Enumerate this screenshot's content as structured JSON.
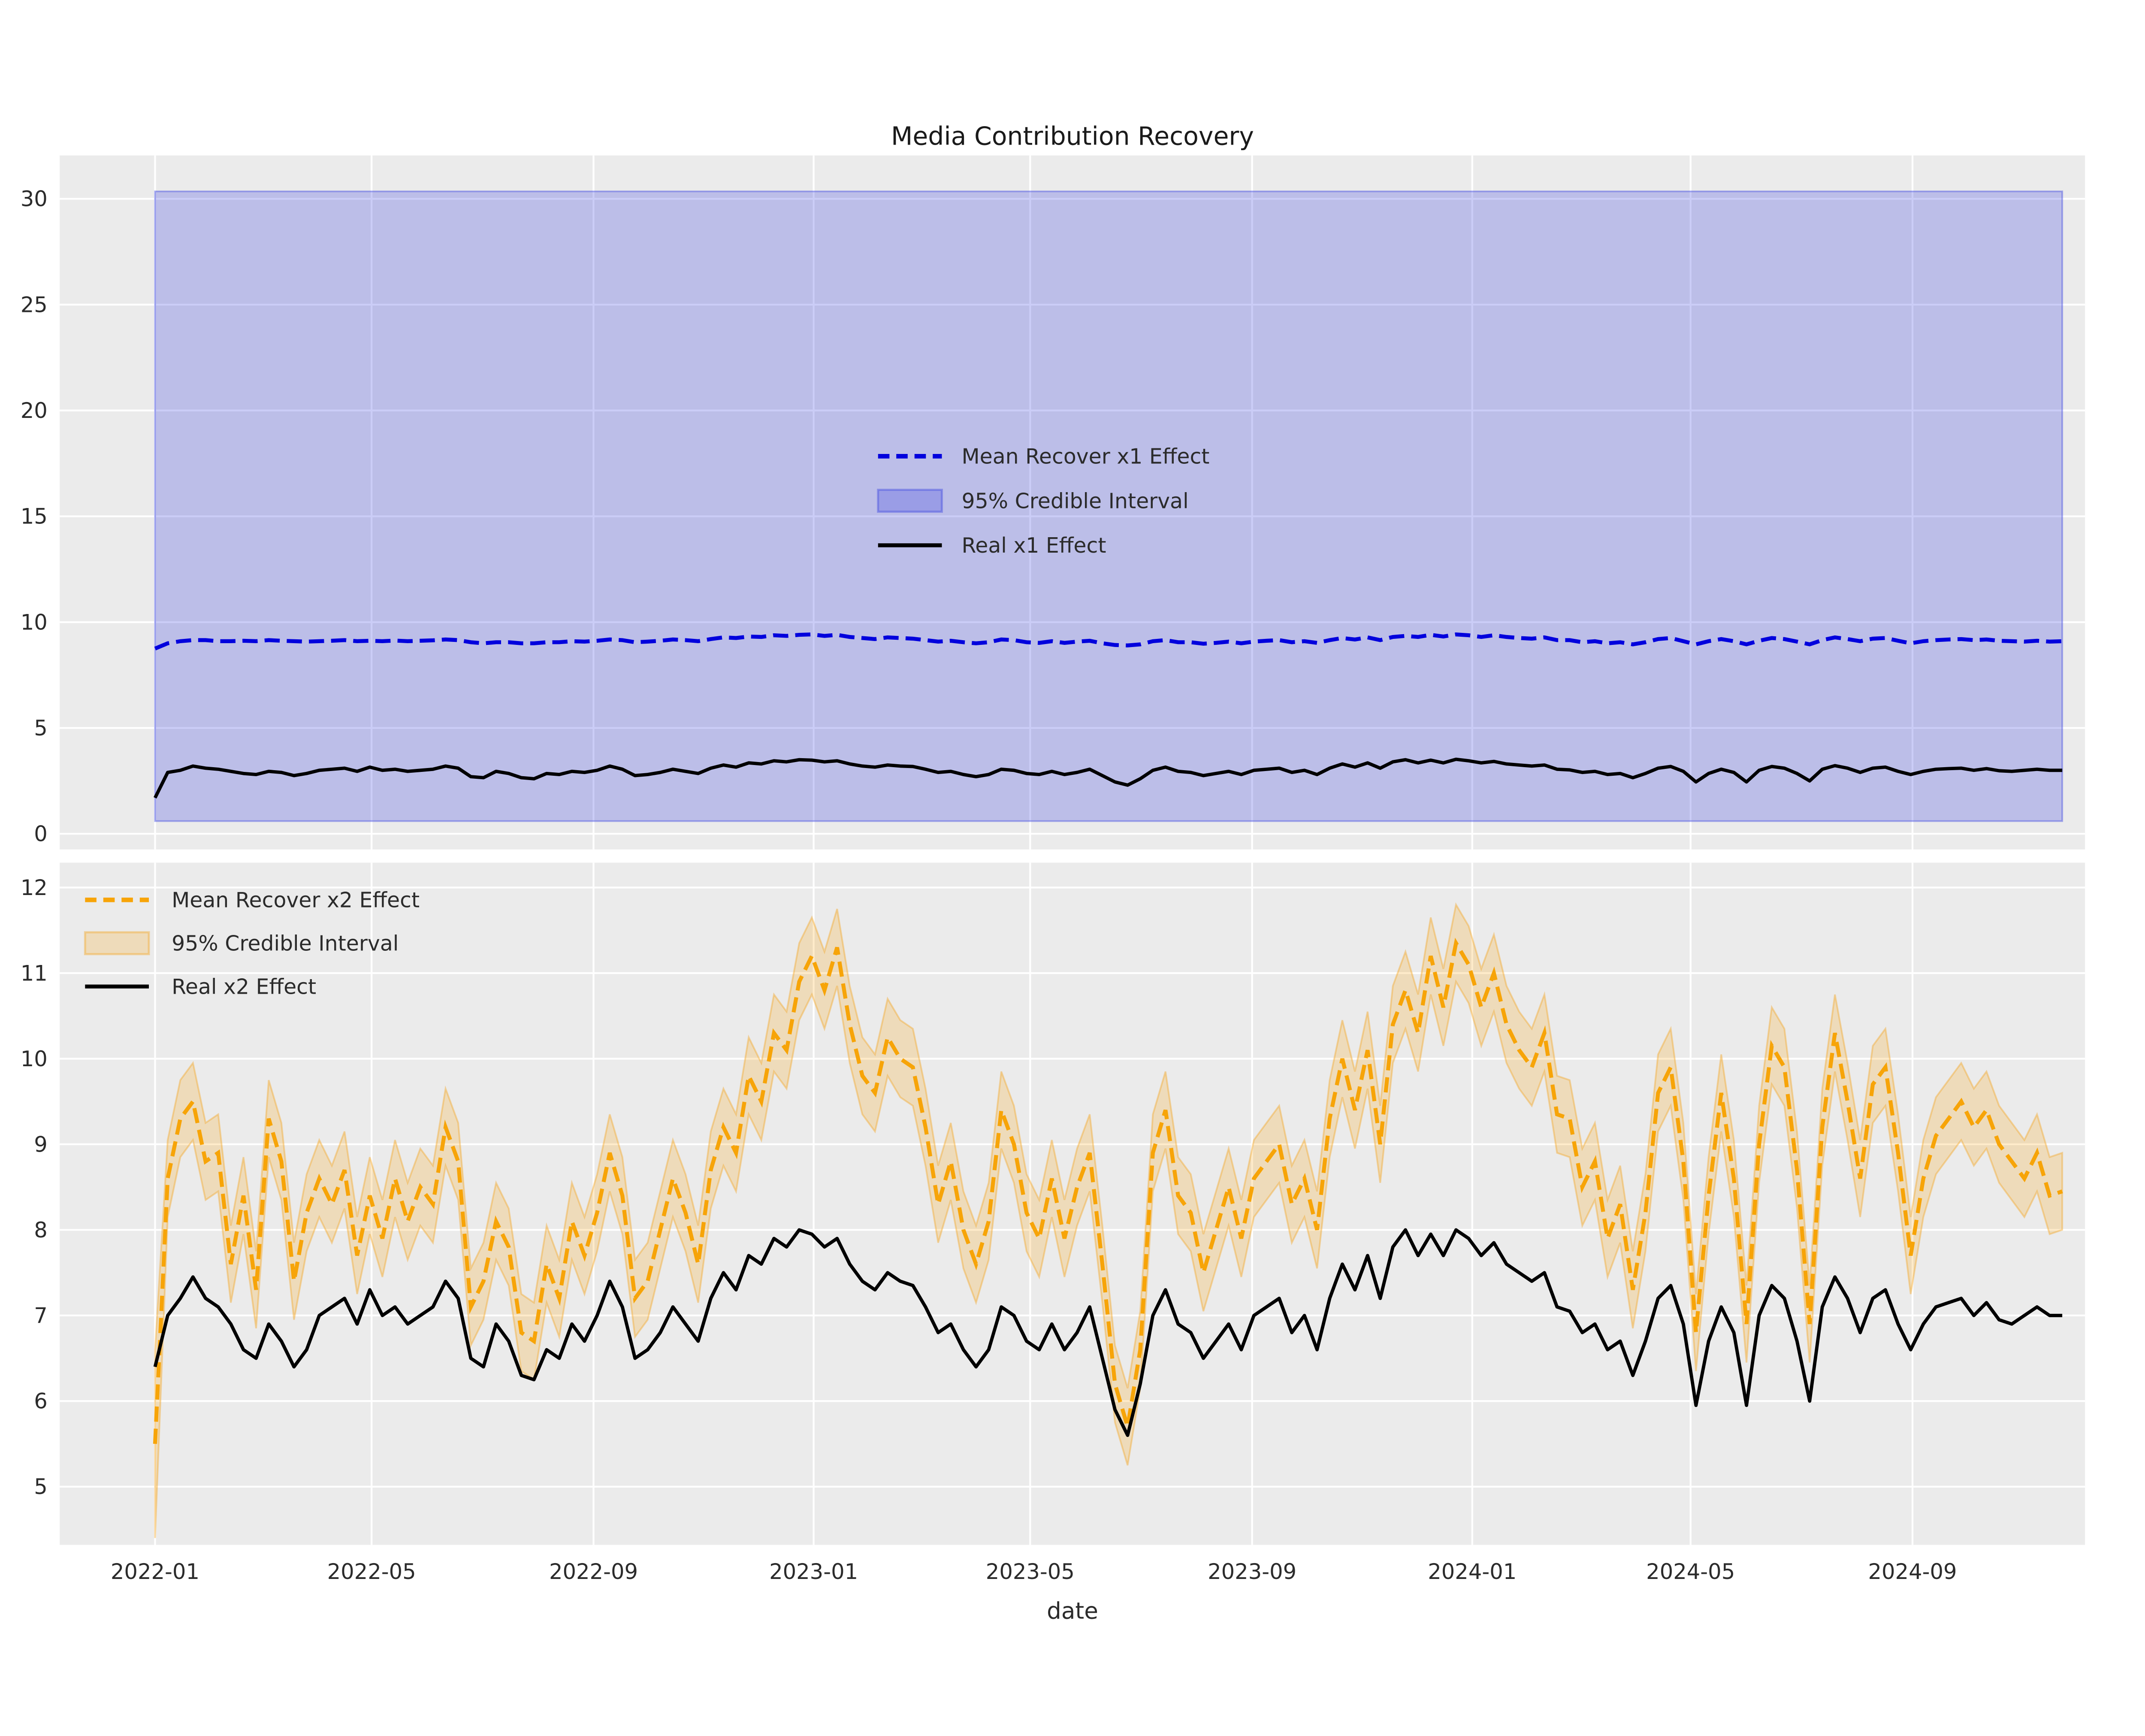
{
  "title": "Media Contribution Recovery",
  "colors": {
    "figure_bg": "#ffffff",
    "axes_bg": "#ebebeb",
    "grid": "#ffffff",
    "tick_text": "#2b2b2b",
    "x1_mean": "#0101dd",
    "x1_band_fill": "rgba(62,72,225,0.27)",
    "x1_band_edge": "rgba(62,72,225,0.42)",
    "x2_mean": "#f7a408",
    "x2_band_fill": "rgba(250,166,15,0.22)",
    "x2_band_edge": "rgba(244,160,20,0.38)",
    "real_line": "#000000"
  },
  "x_axis": {
    "label": "date",
    "start_date": "2022-01-01",
    "cadence_days": 7,
    "tick_labels": [
      "2022-01",
      "2022-05",
      "2022-09",
      "2023-01",
      "2023-05",
      "2023-09",
      "2024-01",
      "2024-05",
      "2024-09"
    ]
  },
  "chart_data": [
    {
      "type": "line",
      "name": "x1-subplot",
      "ylim": [
        -0.74,
        32.05
      ],
      "yticks": [
        0,
        5,
        10,
        15,
        20,
        25,
        30
      ],
      "legend_entries": [
        "Mean Recover x1 Effect",
        "95% Credible Interval",
        "Real x1 Effect"
      ],
      "series": [
        {
          "name": "Mean Recover x1 Effect",
          "role": "mean",
          "line": "dashed",
          "values": [
            8.75,
            9.0,
            9.1,
            9.15,
            9.15,
            9.1,
            9.1,
            9.12,
            9.1,
            9.15,
            9.12,
            9.1,
            9.08,
            9.1,
            9.12,
            9.15,
            9.1,
            9.12,
            9.1,
            9.13,
            9.1,
            9.12,
            9.14,
            9.18,
            9.15,
            9.05,
            9.0,
            9.05,
            9.05,
            9.0,
            9.0,
            9.05,
            9.05,
            9.1,
            9.08,
            9.12,
            9.18,
            9.15,
            9.05,
            9.08,
            9.12,
            9.18,
            9.15,
            9.1,
            9.2,
            9.28,
            9.25,
            9.32,
            9.3,
            9.38,
            9.35,
            9.4,
            9.42,
            9.35,
            9.4,
            9.3,
            9.25,
            9.2,
            9.28,
            9.25,
            9.22,
            9.15,
            9.08,
            9.12,
            9.05,
            9.0,
            9.05,
            9.18,
            9.15,
            9.05,
            9.02,
            9.1,
            9.02,
            9.08,
            9.12,
            9.0,
            8.92,
            8.9,
            8.95,
            9.1,
            9.15,
            9.05,
            9.05,
            8.98,
            9.02,
            9.08,
            9.0,
            9.08,
            9.12,
            9.15,
            9.05,
            9.1,
            9.02,
            9.15,
            9.25,
            9.18,
            9.28,
            9.15,
            9.3,
            9.35,
            9.3,
            9.4,
            9.32,
            9.42,
            9.38,
            9.3,
            9.38,
            9.3,
            9.25,
            9.22,
            9.28,
            9.15,
            9.15,
            9.05,
            9.1,
            9.0,
            9.05,
            8.95,
            9.05,
            9.2,
            9.25,
            9.1,
            8.95,
            9.1,
            9.2,
            9.1,
            8.95,
            9.12,
            9.25,
            9.2,
            9.08,
            8.95,
            9.15,
            9.28,
            9.2,
            9.1,
            9.22,
            9.25,
            9.12,
            9.0,
            9.1,
            9.15,
            9.18,
            9.2,
            9.15,
            9.18,
            9.12,
            9.1,
            9.08,
            9.12,
            9.08,
            9.1
          ]
        },
        {
          "name": "95% Credible Interval",
          "role": "band",
          "upper_constant": 30.35,
          "lower_constant": 0.6
        },
        {
          "name": "Real x1 Effect",
          "role": "real",
          "line": "solid",
          "values": [
            1.7,
            2.9,
            3.0,
            3.2,
            3.1,
            3.05,
            2.95,
            2.85,
            2.8,
            2.95,
            2.9,
            2.75,
            2.85,
            3.0,
            3.05,
            3.1,
            2.95,
            3.15,
            3.0,
            3.05,
            2.95,
            3.0,
            3.05,
            3.2,
            3.1,
            2.7,
            2.65,
            2.95,
            2.85,
            2.65,
            2.6,
            2.85,
            2.8,
            2.95,
            2.9,
            3.0,
            3.2,
            3.05,
            2.75,
            2.8,
            2.9,
            3.05,
            2.95,
            2.85,
            3.1,
            3.25,
            3.15,
            3.35,
            3.3,
            3.45,
            3.4,
            3.5,
            3.48,
            3.4,
            3.45,
            3.3,
            3.2,
            3.15,
            3.25,
            3.2,
            3.18,
            3.05,
            2.9,
            2.95,
            2.8,
            2.7,
            2.8,
            3.05,
            3.0,
            2.85,
            2.8,
            2.95,
            2.8,
            2.9,
            3.05,
            2.75,
            2.45,
            2.3,
            2.6,
            3.0,
            3.15,
            2.95,
            2.9,
            2.75,
            2.85,
            2.95,
            2.8,
            3.0,
            3.05,
            3.1,
            2.9,
            3.0,
            2.8,
            3.1,
            3.3,
            3.15,
            3.35,
            3.1,
            3.4,
            3.5,
            3.35,
            3.48,
            3.35,
            3.52,
            3.45,
            3.35,
            3.42,
            3.3,
            3.25,
            3.2,
            3.25,
            3.05,
            3.02,
            2.9,
            2.95,
            2.8,
            2.85,
            2.65,
            2.85,
            3.1,
            3.18,
            2.95,
            2.45,
            2.85,
            3.05,
            2.9,
            2.45,
            3.0,
            3.18,
            3.1,
            2.85,
            2.5,
            3.05,
            3.22,
            3.1,
            2.9,
            3.1,
            3.15,
            2.95,
            2.8,
            2.95,
            3.05,
            3.08,
            3.1,
            3.0,
            3.08,
            2.98,
            2.95,
            3.0,
            3.05,
            3.0,
            3.0
          ]
        }
      ]
    },
    {
      "type": "line",
      "name": "x2-subplot",
      "ylim": [
        4.32,
        12.29
      ],
      "yticks": [
        5,
        6,
        7,
        8,
        9,
        10,
        11,
        12
      ],
      "legend_entries": [
        "Mean Recover x2 Effect",
        "95% Credible Interval",
        "Real x2 Effect"
      ],
      "series": [
        {
          "name": "Mean Recover x2 Effect",
          "role": "mean",
          "line": "dashed",
          "values": [
            5.5,
            8.6,
            9.3,
            9.5,
            8.8,
            8.9,
            7.6,
            8.4,
            7.3,
            9.3,
            8.8,
            7.4,
            8.2,
            8.6,
            8.3,
            8.7,
            7.7,
            8.4,
            7.9,
            8.6,
            8.1,
            8.5,
            8.3,
            9.2,
            8.8,
            7.1,
            7.4,
            8.1,
            7.8,
            6.8,
            6.7,
            7.6,
            7.2,
            8.1,
            7.7,
            8.2,
            8.9,
            8.4,
            7.2,
            7.4,
            8.0,
            8.6,
            8.2,
            7.6,
            8.7,
            9.2,
            8.9,
            9.8,
            9.5,
            10.3,
            10.1,
            10.9,
            11.2,
            10.8,
            11.3,
            10.4,
            9.8,
            9.6,
            10.25,
            10.0,
            9.9,
            9.2,
            8.3,
            8.8,
            8.0,
            7.6,
            8.1,
            9.4,
            9.0,
            8.2,
            7.9,
            8.6,
            7.9,
            8.5,
            8.9,
            7.6,
            6.2,
            5.7,
            6.6,
            8.9,
            9.4,
            8.4,
            8.2,
            7.5,
            8.0,
            8.5,
            7.9,
            8.6,
            8.8,
            9.0,
            8.3,
            8.6,
            8.0,
            9.3,
            10.0,
            9.4,
            10.1,
            9.0,
            10.4,
            10.8,
            10.3,
            11.2,
            10.6,
            11.35,
            11.1,
            10.6,
            11.0,
            10.4,
            10.1,
            9.9,
            10.3,
            9.35,
            9.3,
            8.5,
            8.8,
            7.9,
            8.3,
            7.3,
            8.2,
            9.6,
            9.9,
            8.8,
            6.8,
            8.4,
            9.6,
            8.6,
            6.9,
            9.0,
            10.15,
            9.9,
            8.7,
            6.9,
            9.2,
            10.3,
            9.5,
            8.6,
            9.7,
            9.9,
            8.9,
            7.7,
            8.6,
            9.1,
            9.3,
            9.5,
            9.2,
            9.4,
            9.0,
            8.8,
            8.6,
            8.9,
            8.4,
            8.45
          ]
        },
        {
          "name": "95% Credible Interval",
          "role": "band",
          "halfwidth": 0.45,
          "first_halfwidth": 1.1
        },
        {
          "name": "Real x2 Effect",
          "role": "real",
          "line": "solid",
          "values": [
            6.4,
            7.0,
            7.2,
            7.45,
            7.2,
            7.1,
            6.9,
            6.6,
            6.5,
            6.9,
            6.7,
            6.4,
            6.6,
            7.0,
            7.1,
            7.2,
            6.9,
            7.3,
            7.0,
            7.1,
            6.9,
            7.0,
            7.1,
            7.4,
            7.2,
            6.5,
            6.4,
            6.9,
            6.7,
            6.3,
            6.25,
            6.6,
            6.5,
            6.9,
            6.7,
            7.0,
            7.4,
            7.1,
            6.5,
            6.6,
            6.8,
            7.1,
            6.9,
            6.7,
            7.2,
            7.5,
            7.3,
            7.7,
            7.6,
            7.9,
            7.8,
            8.0,
            7.95,
            7.8,
            7.9,
            7.6,
            7.4,
            7.3,
            7.5,
            7.4,
            7.35,
            7.1,
            6.8,
            6.9,
            6.6,
            6.4,
            6.6,
            7.1,
            7.0,
            6.7,
            6.6,
            6.9,
            6.6,
            6.8,
            7.1,
            6.5,
            5.9,
            5.6,
            6.2,
            7.0,
            7.3,
            6.9,
            6.8,
            6.5,
            6.7,
            6.9,
            6.6,
            7.0,
            7.1,
            7.2,
            6.8,
            7.0,
            6.6,
            7.2,
            7.6,
            7.3,
            7.7,
            7.2,
            7.8,
            8.0,
            7.7,
            7.95,
            7.7,
            8.0,
            7.9,
            7.7,
            7.85,
            7.6,
            7.5,
            7.4,
            7.5,
            7.1,
            7.05,
            6.8,
            6.9,
            6.6,
            6.7,
            6.3,
            6.7,
            7.2,
            7.35,
            6.9,
            5.95,
            6.7,
            7.1,
            6.8,
            5.95,
            7.0,
            7.35,
            7.2,
            6.7,
            6.0,
            7.1,
            7.45,
            7.2,
            6.8,
            7.2,
            7.3,
            6.9,
            6.6,
            6.9,
            7.1,
            7.15,
            7.2,
            7.0,
            7.15,
            6.95,
            6.9,
            7.0,
            7.1,
            7.0,
            7.0
          ]
        }
      ]
    }
  ]
}
